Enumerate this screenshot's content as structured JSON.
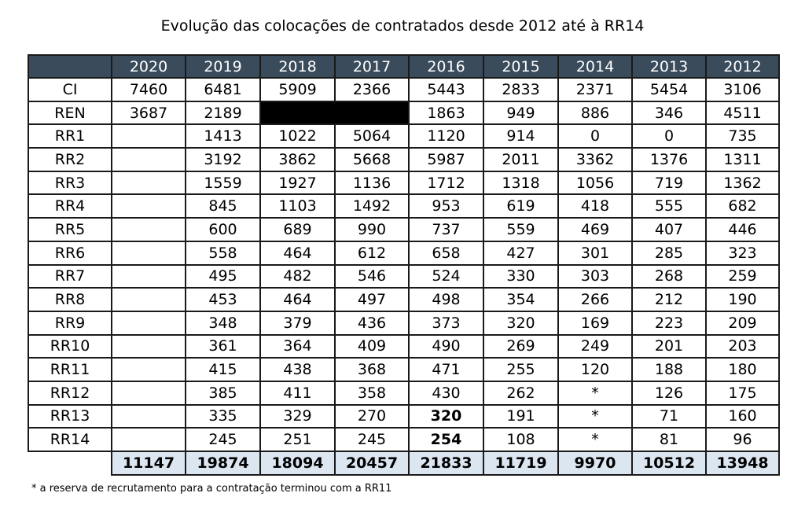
{
  "title": "Evolução das colocações de contratados desde 2012 até à RR14",
  "columns": [
    "2020",
    "2019",
    "2018",
    "2017",
    "2016",
    "2015",
    "2014",
    "2013",
    "2012"
  ],
  "rows": [
    {
      "label": "CI",
      "values": [
        "7460",
        "6481",
        "5909",
        "2366",
        "5443",
        "2833",
        "2371",
        "5454",
        "3106"
      ]
    },
    {
      "label": "REN",
      "values": [
        "3687",
        "2189",
        "",
        "",
        "1863",
        "949",
        "886",
        "346",
        "4511"
      ]
    },
    {
      "label": "RR1",
      "values": [
        "",
        "1413",
        "1022",
        "5064",
        "1120",
        "914",
        "0",
        "0",
        "735"
      ]
    },
    {
      "label": "RR2",
      "values": [
        "",
        "3192",
        "3862",
        "5668",
        "5987",
        "2011",
        "3362",
        "1376",
        "1311"
      ]
    },
    {
      "label": "RR3",
      "values": [
        "",
        "1559",
        "1927",
        "1136",
        "1712",
        "1318",
        "1056",
        "719",
        "1362"
      ]
    },
    {
      "label": "RR4",
      "values": [
        "",
        "845",
        "1103",
        "1492",
        "953",
        "619",
        "418",
        "555",
        "682"
      ]
    },
    {
      "label": "RR5",
      "values": [
        "",
        "600",
        "689",
        "990",
        "737",
        "559",
        "469",
        "407",
        "446"
      ]
    },
    {
      "label": "RR6",
      "values": [
        "",
        "558",
        "464",
        "612",
        "658",
        "427",
        "301",
        "285",
        "323"
      ]
    },
    {
      "label": "RR7",
      "values": [
        "",
        "495",
        "482",
        "546",
        "524",
        "330",
        "303",
        "268",
        "259"
      ]
    },
    {
      "label": "RR8",
      "values": [
        "",
        "453",
        "464",
        "497",
        "498",
        "354",
        "266",
        "212",
        "190"
      ]
    },
    {
      "label": "RR9",
      "values": [
        "",
        "348",
        "379",
        "436",
        "373",
        "320",
        "169",
        "223",
        "209"
      ]
    },
    {
      "label": "RR10",
      "values": [
        "",
        "361",
        "364",
        "409",
        "490",
        "269",
        "249",
        "201",
        "203"
      ]
    },
    {
      "label": "RR11",
      "values": [
        "",
        "415",
        "438",
        "368",
        "471",
        "255",
        "120",
        "188",
        "180"
      ]
    },
    {
      "label": "RR12",
      "values": [
        "",
        "385",
        "411",
        "358",
        "430",
        "262",
        "*",
        "126",
        "175"
      ]
    },
    {
      "label": "RR13",
      "values": [
        "",
        "335",
        "329",
        "270",
        "320",
        "191",
        "*",
        "71",
        "160"
      ]
    },
    {
      "label": "RR14",
      "values": [
        "",
        "245",
        "251",
        "245",
        "254",
        "108",
        "*",
        "81",
        "96"
      ]
    }
  ],
  "totals": [
    "11147",
    "19874",
    "18094",
    "20457",
    "21833",
    "11719",
    "9970",
    "10512",
    "13948"
  ],
  "footnote": "* a reserva de recrutamento para a contratação terminou com a RR11",
  "colors": {
    "header_bg": "#3a4b5c",
    "header_text": "#ffffff",
    "totals_bg": "#dce6f1",
    "blacked_out": "#000000"
  }
}
